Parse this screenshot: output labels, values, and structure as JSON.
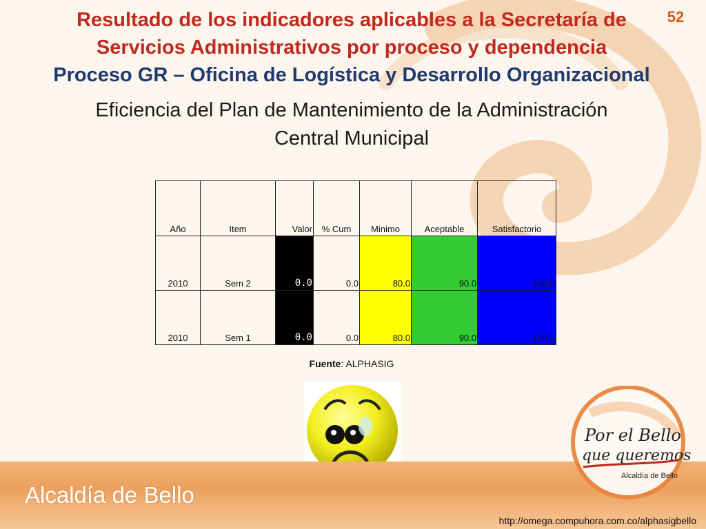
{
  "header": {
    "line1": "Resultado de los indicadores aplicables a la Secretaría de",
    "line2": "Servicios Administrativos por proceso y dependencia",
    "line3": "Proceso GR – Oficina de Logística y Desarrollo Organizacional",
    "page_number": "52"
  },
  "subtitle": {
    "line1": "Eficiencia del Plan de Mantenimiento de la Administración",
    "line2": "Central Municipal"
  },
  "table": {
    "headers": [
      "Año",
      "Item",
      "Valor",
      "% Cum",
      "Minimo",
      "Aceptable",
      "Satisfactorio"
    ],
    "rows": [
      {
        "ano": "2010",
        "item": "Sem 2",
        "valor": "0.0",
        "cum": "0.0",
        "minimo": "80.0",
        "aceptable": "90.0",
        "satisfactorio": "100.0"
      },
      {
        "ano": "2010",
        "item": "Sem 1",
        "valor": "0.0",
        "cum": "0.0",
        "minimo": "80.0",
        "aceptable": "90.0",
        "satisfactorio": "100.0"
      }
    ],
    "colors": {
      "valor": "#000000",
      "minimo": "#ffff00",
      "aceptable": "#33cc33",
      "satisfactorio": "#0000ff"
    }
  },
  "source": {
    "label": "Fuente",
    "value": ": ALPHASIG"
  },
  "status_face": "sad-face-icon",
  "brand": {
    "slogan_line1": "Por el Bello",
    "slogan_line2": "que queremos",
    "org": "Alcaldía de Bello"
  },
  "footer": {
    "logo_text": "Alcaldía de Bello",
    "url": "http://omega.compuhora.com.co/alphasigbello"
  }
}
